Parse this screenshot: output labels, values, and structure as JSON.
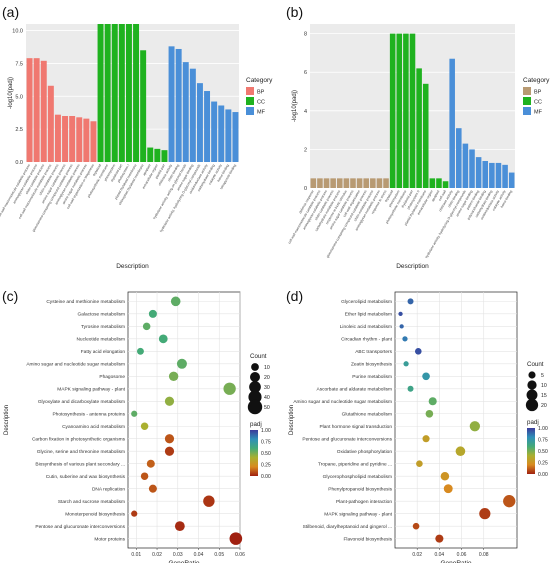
{
  "chart_data": [
    {
      "type": "bar",
      "panel_label": "(a)",
      "ylabel": "-log10(padj)",
      "xlabel": "Description",
      "ylim": [
        0,
        10.5
      ],
      "yticks": [
        "0.0",
        "2.5",
        "5.0",
        "7.5",
        "10.0"
      ],
      "legend": {
        "title": "Category",
        "entries": [
          {
            "label": "BP",
            "color": "#f07870"
          },
          {
            "label": "CC",
            "color": "#1fb21f"
          },
          {
            "label": "MF",
            "color": "#4a8fd8"
          }
        ],
        "placement": "right"
      },
      "categories": [
        "cell wall macromolecule catabolic process",
        "aminoglycan catabolic process",
        "chitin catabolic process",
        "cell wall macromolecule metabolic process",
        "chitin metabolic process",
        "amino sugar catabolic process",
        "glucosamine-containing compound catabolic process",
        "aminoglycan metabolic process",
        "amino sugar metabolic process",
        "cell wall organization or biogenesis",
        "thylakoid",
        "photosynthetic membrane",
        "photosystem",
        "thylakoid part",
        "photosystem I",
        "plastid thylakoid membrane",
        "chloroplast thylakoid membrane",
        "apoplast",
        "extracellular region",
        "plastid part",
        "chitinase activity",
        "chitin binding",
        "hydrolase activity, acting on glycosyl bonds",
        "amino sugar binding",
        "hydrolase activity, hydrolyzing O-glycosyl compounds",
        "oxidoreductase activity",
        "carbohydrate binding",
        "catalytic activity",
        "heme binding",
        "tetrapyrrole binding"
      ],
      "values": [
        7.9,
        7.9,
        7.7,
        5.8,
        3.6,
        3.5,
        3.5,
        3.4,
        3.3,
        3.1,
        10.5,
        10.5,
        10.5,
        10.5,
        10.5,
        10.5,
        8.5,
        1.1,
        1.0,
        0.9,
        8.8,
        8.6,
        7.6,
        7.1,
        6.0,
        5.4,
        4.6,
        4.3,
        4.0,
        3.8
      ],
      "groups": [
        "BP",
        "BP",
        "BP",
        "BP",
        "BP",
        "BP",
        "BP",
        "BP",
        "BP",
        "BP",
        "CC",
        "CC",
        "CC",
        "CC",
        "CC",
        "CC",
        "CC",
        "CC",
        "CC",
        "CC",
        "MF",
        "MF",
        "MF",
        "MF",
        "MF",
        "MF",
        "MF",
        "MF",
        "MF",
        "MF"
      ]
    },
    {
      "type": "bar",
      "panel_label": "(b)",
      "ylabel": "-log10(padj)",
      "xlabel": "Description",
      "ylim": [
        0,
        8.5
      ],
      "yticks": [
        "0",
        "2",
        "4",
        "6",
        "8"
      ],
      "legend": {
        "title": "Category",
        "entries": [
          {
            "label": "BP",
            "color": "#b89a72"
          },
          {
            "label": "CC",
            "color": "#1fb21f"
          },
          {
            "label": "MF",
            "color": "#4a8fd8"
          }
        ],
        "placement": "right"
      },
      "categories": [
        "defense response",
        "cell wall macromolecule catabolic process",
        "aminoglycan catabolic process",
        "chitin catabolic process",
        "carbohydrate metabolic process",
        "response to biotic stimulus",
        "amino sugar catabolic process",
        "cell wall organization",
        "glucosamine-containing compound catabolic process",
        "chitin metabolic process",
        "aminoglycan metabolic process",
        "response to stress",
        "thylakoid",
        "photosystem",
        "photosynthetic membrane",
        "thylakoid part",
        "photosystem II",
        "plastid thylakoid membrane",
        "extracellular region",
        "apoplast",
        "cell wall",
        "chitinase activity",
        "chitin binding",
        "hydrolase activity, hydrolyzing O-glycosyl compounds",
        "amino sugar binding",
        "pattern binding",
        "polysaccharide binding",
        "carbohydrate binding",
        "oxidoreductase activity",
        "catalytic activity",
        "heme binding"
      ],
      "values": [
        0.5,
        0.5,
        0.5,
        0.5,
        0.5,
        0.5,
        0.5,
        0.5,
        0.5,
        0.5,
        0.5,
        0.5,
        8.0,
        8.0,
        8.0,
        8.0,
        6.2,
        5.4,
        0.5,
        0.5,
        0.35,
        6.7,
        3.1,
        2.3,
        2.0,
        1.6,
        1.4,
        1.3,
        1.3,
        1.2,
        0.8
      ],
      "groups": [
        "BP",
        "BP",
        "BP",
        "BP",
        "BP",
        "BP",
        "BP",
        "BP",
        "BP",
        "BP",
        "BP",
        "BP",
        "CC",
        "CC",
        "CC",
        "CC",
        "CC",
        "CC",
        "CC",
        "CC",
        "CC",
        "MF",
        "MF",
        "MF",
        "MF",
        "MF",
        "MF",
        "MF",
        "MF",
        "MF",
        "MF"
      ]
    },
    {
      "type": "scatter",
      "panel_label": "(c)",
      "xlabel": "GeneRatio",
      "ylabel": "Description",
      "xlim": [
        0.006,
        0.06
      ],
      "xticks": [
        0.01,
        0.02,
        0.03,
        0.04,
        0.05,
        0.06
      ],
      "xtick_labels": [
        "0.01",
        "0.02",
        "0.03",
        "0.04",
        "0.05",
        "0.06"
      ],
      "size_legend": {
        "title": "Count",
        "values": [
          10,
          20,
          30,
          40,
          50
        ]
      },
      "color_legend": {
        "title": "padj",
        "ticks": [
          "1.00",
          "0.75",
          "0.50",
          "0.25",
          "0.00"
        ],
        "colors": [
          "#3a3a9a",
          "#2f8fb8",
          "#44aa77",
          "#aab030",
          "#d88a20",
          "#a02010"
        ]
      },
      "points": [
        {
          "term": "Cysteine and methionine metabolism",
          "x": 0.029,
          "count": 18,
          "padj": 0.55
        },
        {
          "term": "Galactose metabolism",
          "x": 0.018,
          "count": 11,
          "padj": 0.6
        },
        {
          "term": "Tyrosine metabolism",
          "x": 0.015,
          "count": 9,
          "padj": 0.55
        },
        {
          "term": "Nucleotide metabolism",
          "x": 0.023,
          "count": 14,
          "padj": 0.6
        },
        {
          "term": "Fatty acid elongation",
          "x": 0.012,
          "count": 7,
          "padj": 0.6
        },
        {
          "term": "Amino sugar and nucleotide sugar metabolism",
          "x": 0.032,
          "count": 20,
          "padj": 0.55
        },
        {
          "term": "Phagosome",
          "x": 0.028,
          "count": 17,
          "padj": 0.5
        },
        {
          "term": "MAPK signaling pathway - plant",
          "x": 0.055,
          "count": 34,
          "padj": 0.5
        },
        {
          "term": "Glyoxylate and dicarboxylate metabolism",
          "x": 0.026,
          "count": 16,
          "padj": 0.45
        },
        {
          "term": "Photosynthesis - antenna proteins",
          "x": 0.009,
          "count": 5,
          "padj": 0.55
        },
        {
          "term": "Cyanoamino acid metabolism",
          "x": 0.014,
          "count": 9,
          "padj": 0.4
        },
        {
          "term": "Carbon fixation in photosynthetic organisms",
          "x": 0.026,
          "count": 16,
          "padj": 0.1
        },
        {
          "term": "Glycine, serine and threonine metabolism",
          "x": 0.026,
          "count": 16,
          "padj": 0.05
        },
        {
          "term": "Biosynthesis of various plant secondary ...",
          "x": 0.017,
          "count": 11,
          "padj": 0.12
        },
        {
          "term": "Cutin, suberine and wax biosynthesis",
          "x": 0.014,
          "count": 9,
          "padj": 0.1
        },
        {
          "term": "DNA replication",
          "x": 0.018,
          "count": 11,
          "padj": 0.1
        },
        {
          "term": "Starch and sucrose metabolism",
          "x": 0.045,
          "count": 28,
          "padj": 0.04
        },
        {
          "term": "Monoterpenoid biosynthesis",
          "x": 0.009,
          "count": 5,
          "padj": 0.05
        },
        {
          "term": "Pentose and glucuronate interconversions",
          "x": 0.031,
          "count": 19,
          "padj": 0.02
        },
        {
          "term": "Motor proteins",
          "x": 0.058,
          "count": 36,
          "padj": 0.0
        }
      ]
    },
    {
      "type": "scatter",
      "panel_label": "(d)",
      "xlabel": "GeneRatio",
      "ylabel": "Description",
      "xlim": [
        0.0,
        0.11
      ],
      "xticks": [
        0.02,
        0.04,
        0.06,
        0.08
      ],
      "xtick_labels": [
        "0.02",
        "0.04",
        "0.06",
        "0.08"
      ],
      "size_legend": {
        "title": "Count",
        "values": [
          5,
          10,
          15,
          20
        ]
      },
      "color_legend": {
        "title": "padj",
        "ticks": [
          "1.00",
          "0.75",
          "0.50",
          "0.25",
          "0.00"
        ],
        "colors": [
          "#3a3a9a",
          "#2f8fb8",
          "#44aa77",
          "#aab030",
          "#d88a20",
          "#a02010"
        ]
      },
      "points": [
        {
          "term": "Glycerolipid metabolism",
          "x": 0.014,
          "count": 3,
          "padj": 0.9
        },
        {
          "term": "Ether lipid metabolism",
          "x": 0.005,
          "count": 1,
          "padj": 0.95
        },
        {
          "term": "Linoleic acid metabolism",
          "x": 0.006,
          "count": 1,
          "padj": 0.9
        },
        {
          "term": "Circadian rhythm - plant",
          "x": 0.009,
          "count": 2,
          "padj": 0.85
        },
        {
          "term": "ABC transporters",
          "x": 0.021,
          "count": 4,
          "padj": 0.95
        },
        {
          "term": "Zeatin biosynthesis",
          "x": 0.01,
          "count": 2,
          "padj": 0.7
        },
        {
          "term": "Purine metabolism",
          "x": 0.028,
          "count": 6,
          "padj": 0.75
        },
        {
          "term": "Ascorbate and aldarate metabolism",
          "x": 0.014,
          "count": 3,
          "padj": 0.65
        },
        {
          "term": "Amino sugar and nucleotide sugar metabolism",
          "x": 0.034,
          "count": 7,
          "padj": 0.55
        },
        {
          "term": "Glutathione metabolism",
          "x": 0.031,
          "count": 6,
          "padj": 0.5
        },
        {
          "term": "Plant hormone signal transduction",
          "x": 0.072,
          "count": 13,
          "padj": 0.45
        },
        {
          "term": "Pentose and glucuronate interconversions",
          "x": 0.028,
          "count": 5,
          "padj": 0.3
        },
        {
          "term": "Oxidative phosphorylation",
          "x": 0.059,
          "count": 11,
          "padj": 0.35
        },
        {
          "term": "Tropane, piperidine and pyridine ...",
          "x": 0.022,
          "count": 4,
          "padj": 0.3
        },
        {
          "term": "Glycerophospholipid metabolism",
          "x": 0.045,
          "count": 8,
          "padj": 0.25
        },
        {
          "term": "Phenylpropanoid biosynthesis",
          "x": 0.048,
          "count": 9,
          "padj": 0.2
        },
        {
          "term": "Plant-pathogen interaction",
          "x": 0.103,
          "count": 20,
          "padj": 0.1
        },
        {
          "term": "MAPK signaling pathway - plant",
          "x": 0.081,
          "count": 16,
          "padj": 0.05
        },
        {
          "term": "Stilbenoid, diarylheptanoid and gingerol ...",
          "x": 0.019,
          "count": 4,
          "padj": 0.08
        },
        {
          "term": "Flavonoid biosynthesis",
          "x": 0.04,
          "count": 7,
          "padj": 0.05
        }
      ]
    }
  ]
}
